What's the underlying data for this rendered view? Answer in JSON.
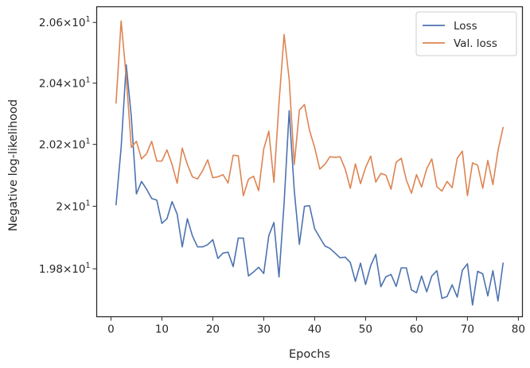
{
  "chart_data": {
    "type": "line",
    "title": "",
    "xlabel": "Epochs",
    "ylabel": "Negative log-likelihood",
    "xlim": [
      -2.8,
      80.8
    ],
    "ylim": [
      19.648,
      20.652
    ],
    "xticks": [
      0,
      10,
      20,
      30,
      40,
      50,
      60,
      70,
      80
    ],
    "xtick_labels": [
      "0",
      "10",
      "20",
      "30",
      "40",
      "50",
      "60",
      "70",
      "80"
    ],
    "yticks": [
      19.8,
      20.0,
      20.2,
      20.4,
      20.6
    ],
    "ytick_labels": [
      {
        "mantissa": "1.98",
        "exp": "1"
      },
      {
        "mantissa": "2",
        "exp": "1"
      },
      {
        "mantissa": "2.02",
        "exp": "1"
      },
      {
        "mantissa": "2.04",
        "exp": "1"
      },
      {
        "mantissa": "2.06",
        "exp": "1"
      }
    ],
    "yscale": "log",
    "grid": false,
    "legend_position": "top-right",
    "x": [
      1,
      2,
      3,
      4,
      5,
      6,
      7,
      8,
      9,
      10,
      11,
      12,
      13,
      14,
      15,
      16,
      17,
      18,
      19,
      20,
      21,
      22,
      23,
      24,
      25,
      26,
      27,
      28,
      29,
      30,
      31,
      32,
      33,
      34,
      35,
      36,
      37,
      38,
      39,
      40,
      41,
      42,
      43,
      44,
      45,
      46,
      47,
      48,
      49,
      50,
      51,
      52,
      53,
      54,
      55,
      56,
      57,
      58,
      59,
      60,
      61,
      62,
      63,
      64,
      65,
      66,
      67,
      68,
      69,
      70,
      71,
      72,
      73,
      74,
      75,
      76,
      77
    ],
    "series": [
      {
        "name": "Loss",
        "color": "#4c72b0",
        "values": [
          20.005,
          20.19,
          20.46,
          20.29,
          20.04,
          20.08,
          20.055,
          20.025,
          20.02,
          19.945,
          19.96,
          20.015,
          19.975,
          19.87,
          19.96,
          19.905,
          19.87,
          19.87,
          19.877,
          19.893,
          19.833,
          19.85,
          19.853,
          19.807,
          19.898,
          19.898,
          19.777,
          19.79,
          19.805,
          19.785,
          19.906,
          19.948,
          19.774,
          20.01,
          20.31,
          20.05,
          19.878,
          20.0,
          20.002,
          19.928,
          19.9,
          19.873,
          19.865,
          19.85,
          19.835,
          19.837,
          19.82,
          19.76,
          19.818,
          19.75,
          19.81,
          19.846,
          19.743,
          19.775,
          19.782,
          19.744,
          19.803,
          19.803,
          19.733,
          19.724,
          19.777,
          19.727,
          19.777,
          19.794,
          19.706,
          19.712,
          19.749,
          19.71,
          19.795,
          19.816,
          19.685,
          19.792,
          19.784,
          19.714,
          19.794,
          19.698,
          19.818
        ]
      },
      {
        "name": "Val. loss",
        "color": "#dd8452",
        "values": [
          20.335,
          20.605,
          20.42,
          20.19,
          20.21,
          20.153,
          20.17,
          20.21,
          20.146,
          20.146,
          20.182,
          20.135,
          20.074,
          20.188,
          20.135,
          20.095,
          20.088,
          20.115,
          20.15,
          20.092,
          20.095,
          20.102,
          20.075,
          20.165,
          20.163,
          20.034,
          20.087,
          20.097,
          20.05,
          20.185,
          20.243,
          20.077,
          20.335,
          20.56,
          20.412,
          20.135,
          20.312,
          20.33,
          20.245,
          20.19,
          20.12,
          20.135,
          20.16,
          20.158,
          20.16,
          20.12,
          20.058,
          20.137,
          20.073,
          20.125,
          20.162,
          20.078,
          20.106,
          20.1,
          20.055,
          20.142,
          20.155,
          20.085,
          20.042,
          20.102,
          20.062,
          20.121,
          20.153,
          20.063,
          20.049,
          20.08,
          20.06,
          20.155,
          20.178,
          20.034,
          20.14,
          20.133,
          20.058,
          20.148,
          20.07,
          20.18,
          20.255
        ]
      }
    ]
  }
}
